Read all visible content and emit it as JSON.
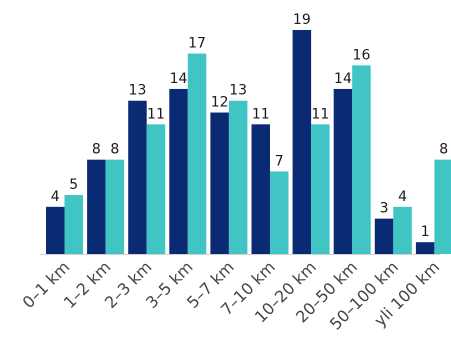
{
  "chart_data": {
    "type": "bar",
    "categories": [
      "0–1 km",
      "1–2 km",
      "2–3 km",
      "3–5 km",
      "5–7 km",
      "7–10 km",
      "10–20 km",
      "20–50 km",
      "50–100 km",
      "yli 100 km"
    ],
    "series": [
      {
        "values": [
          4,
          8,
          13,
          14,
          12,
          11,
          19,
          14,
          3,
          1
        ],
        "color": "#0a2a73"
      },
      {
        "values": [
          5,
          8,
          11,
          17,
          13,
          7,
          11,
          16,
          4,
          8
        ],
        "color": "#40c4c4"
      }
    ],
    "title": "",
    "xlabel": "",
    "ylabel": "",
    "ylim": [
      0,
      19
    ],
    "grid": false,
    "legend": "none",
    "data_labels": true
  }
}
